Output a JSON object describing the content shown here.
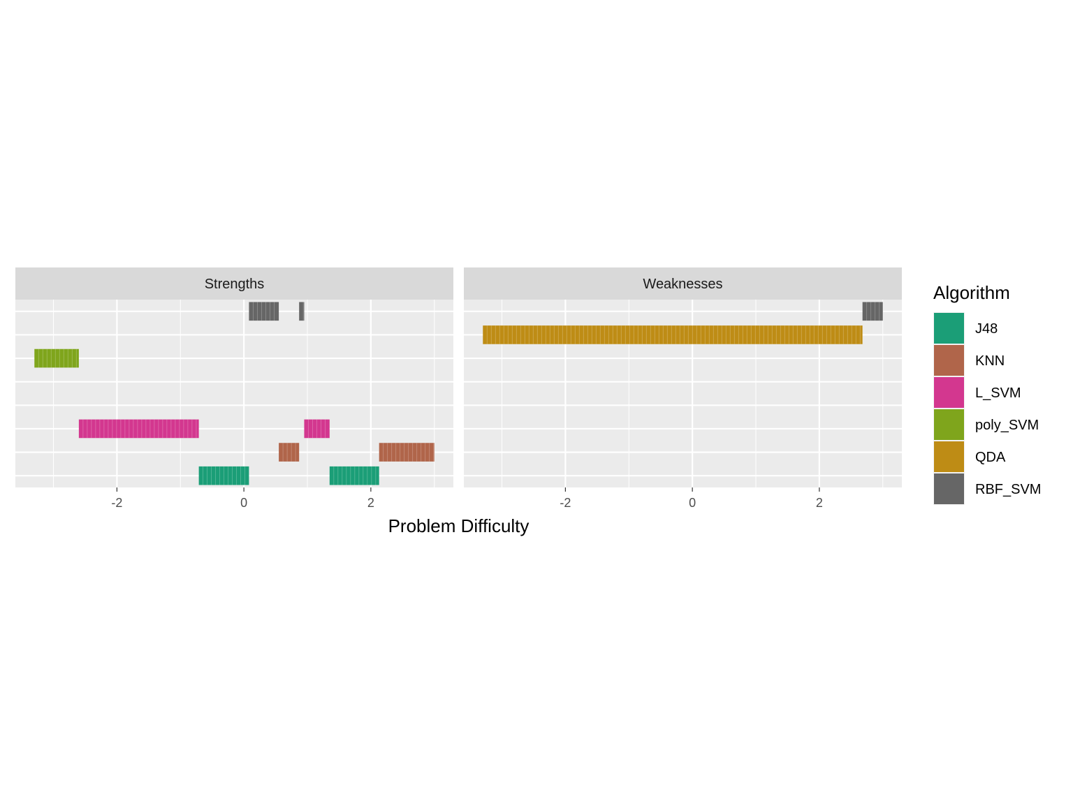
{
  "chart_data": {
    "type": "bar",
    "subtype": "faceted-horizontal-range",
    "xlabel": "Problem Difficulty",
    "ylabel": "",
    "xlim": [
      -3.6,
      3.3
    ],
    "x_ticks": [
      -2,
      0,
      2
    ],
    "grid": true,
    "legend": {
      "title": "Algorithm",
      "placement": "right",
      "entries": [
        {
          "name": "J48",
          "color": "#1B9E77"
        },
        {
          "name": "KNN",
          "color": "#B0654A"
        },
        {
          "name": "L_SVM",
          "color": "#D3378F"
        },
        {
          "name": "poly_SVM",
          "color": "#7FA51C"
        },
        {
          "name": "QDA",
          "color": "#BE8C15"
        },
        {
          "name": "RBF_SVM",
          "color": "#666666"
        }
      ]
    },
    "panels": [
      {
        "title": "Strengths",
        "bars": [
          {
            "algorithm": "RBF_SVM",
            "row": 8,
            "xmin": 0.08,
            "xmax": 0.55
          },
          {
            "algorithm": "RBF_SVM",
            "row": 8,
            "xmin": 0.87,
            "xmax": 0.95
          },
          {
            "algorithm": "poly_SVM",
            "row": 6,
            "xmin": -3.3,
            "xmax": -2.6
          },
          {
            "algorithm": "L_SVM",
            "row": 3,
            "xmin": -2.6,
            "xmax": -0.71
          },
          {
            "algorithm": "L_SVM",
            "row": 3,
            "xmin": 0.95,
            "xmax": 1.35
          },
          {
            "algorithm": "KNN",
            "row": 2,
            "xmin": 0.55,
            "xmax": 0.87
          },
          {
            "algorithm": "KNN",
            "row": 2,
            "xmin": 2.13,
            "xmax": 3.0
          },
          {
            "algorithm": "J48",
            "row": 1,
            "xmin": -0.71,
            "xmax": 0.08
          },
          {
            "algorithm": "J48",
            "row": 1,
            "xmin": 1.35,
            "xmax": 2.13
          }
        ]
      },
      {
        "title": "Weaknesses",
        "bars": [
          {
            "algorithm": "RBF_SVM",
            "row": 8,
            "xmin": 2.68,
            "xmax": 3.0
          },
          {
            "algorithm": "QDA",
            "row": 7,
            "xmin": -3.3,
            "xmax": 2.68
          }
        ]
      }
    ]
  }
}
